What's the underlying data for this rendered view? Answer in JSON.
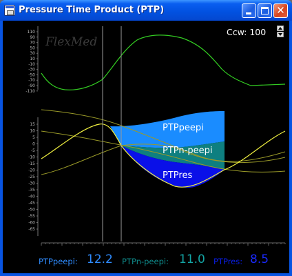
{
  "window": {
    "title": "Pressure Time Product (PTP)",
    "close_glyph": "✕"
  },
  "watermark": "FlexMed",
  "control": {
    "label": "Ccw:",
    "value": "100"
  },
  "axes": {
    "upper_ticks": [
      "110",
      "90",
      "70",
      "50",
      "30",
      "10",
      "-10",
      "-30",
      "-50",
      "-70",
      "-90",
      "-110"
    ],
    "lower_ticks": [
      "15",
      "10",
      "5",
      "0",
      "-5",
      "-10",
      "-15",
      "-20",
      "-25",
      "-30",
      "-35",
      "-40",
      "-45",
      "-50",
      "-55",
      "-60",
      "-65"
    ]
  },
  "regions": {
    "ptp_peepi": "PTPpeepi",
    "ptp_n_peepi": "PTPn-peepi",
    "ptp_res": "PTPres"
  },
  "readouts": {
    "ptp_peepi_label": "PTPpeepi:",
    "ptp_peepi_value": "12.2",
    "ptp_n_peepi_label": "PTPn-peepi:",
    "ptp_n_peepi_value": "11.0",
    "ptp_res_label": "PTPres:",
    "ptp_res_value": "8.5"
  },
  "colors": {
    "flow_trace": "#33cc22",
    "pressure_trace": "#f0f040",
    "reference_trace": "#9a9a28",
    "ptp_peepi_fill": "#1a8cff",
    "ptp_n_peepi_fill": "#0e7f80",
    "ptp_res_fill": "#0a10e8"
  }
}
